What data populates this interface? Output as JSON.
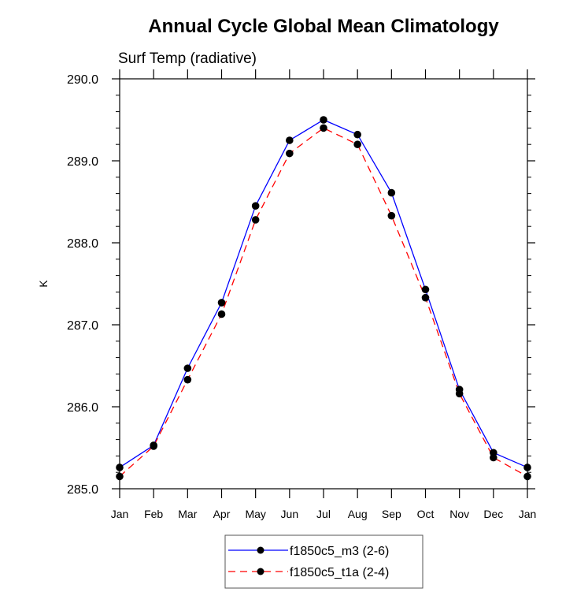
{
  "chart_data": {
    "type": "line",
    "title": "Annual Cycle Global Mean Climatology",
    "subtitle": "Surf Temp (radiative)",
    "xlabel": "",
    "ylabel": "K",
    "categories": [
      "Jan",
      "Feb",
      "Mar",
      "Apr",
      "May",
      "Jun",
      "Jul",
      "Aug",
      "Sep",
      "Oct",
      "Nov",
      "Dec",
      "Jan"
    ],
    "ylim": [
      285.0,
      290.0
    ],
    "yticks": [
      "285.0",
      "286.0",
      "287.0",
      "288.0",
      "289.0",
      "290.0"
    ],
    "yminor_per_major": 5,
    "grid": false,
    "legend_position": "bottom-center",
    "series": [
      {
        "name": "f1850c5_m3 (2-6)",
        "color": "#0000ff",
        "dash": "solid",
        "marker": "filled-circle",
        "values": [
          285.26,
          285.53,
          286.47,
          287.27,
          288.45,
          289.25,
          289.5,
          289.32,
          288.61,
          287.43,
          286.21,
          285.44,
          285.26
        ]
      },
      {
        "name": "f1850c5_t1a (2-4)",
        "color": "#ff0000",
        "dash": "dashed",
        "marker": "filled-circle",
        "values": [
          285.15,
          285.52,
          286.33,
          287.13,
          288.28,
          289.09,
          289.4,
          289.2,
          288.33,
          287.33,
          286.16,
          285.38,
          285.15
        ]
      }
    ]
  }
}
